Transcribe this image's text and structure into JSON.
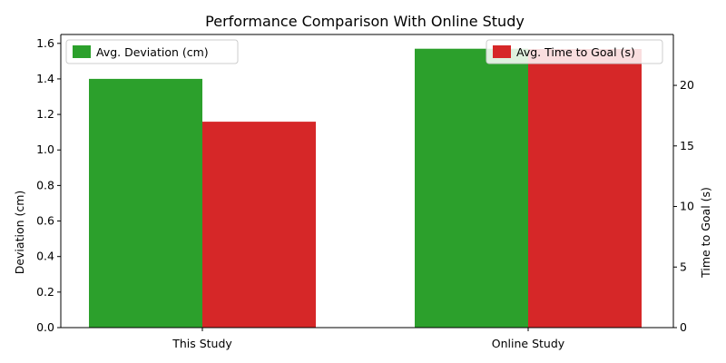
{
  "chart_data": {
    "type": "bar",
    "title": "Performance Comparison With Online Study",
    "categories": [
      "This Study",
      "Online Study"
    ],
    "xlabel": "",
    "series": [
      {
        "name": "Avg. Deviation (cm)",
        "axis": "left",
        "color": "#2ca02c",
        "values": [
          1.4,
          1.57
        ]
      },
      {
        "name": "Avg. Time to Goal (s)",
        "axis": "right",
        "color": "#d62728",
        "values": [
          17.0,
          23.0
        ]
      }
    ],
    "y_left": {
      "label": "Deviation (cm)",
      "lim": [
        0,
        1.65
      ],
      "ticks": [
        0.0,
        0.2,
        0.4,
        0.6,
        0.8,
        1.0,
        1.2,
        1.4,
        1.6
      ],
      "tick_labels": [
        "0.0",
        "0.2",
        "0.4",
        "0.6",
        "0.8",
        "1.0",
        "1.2",
        "1.4",
        "1.6"
      ]
    },
    "y_right": {
      "label": "Time to Goal (s)",
      "lim": [
        0,
        24.2
      ],
      "ticks": [
        0,
        5,
        10,
        15,
        20
      ],
      "tick_labels": [
        "0",
        "5",
        "10",
        "15",
        "20"
      ]
    },
    "legend": {
      "left_series": "top-left",
      "right_series": "top-right"
    },
    "grid": false
  }
}
